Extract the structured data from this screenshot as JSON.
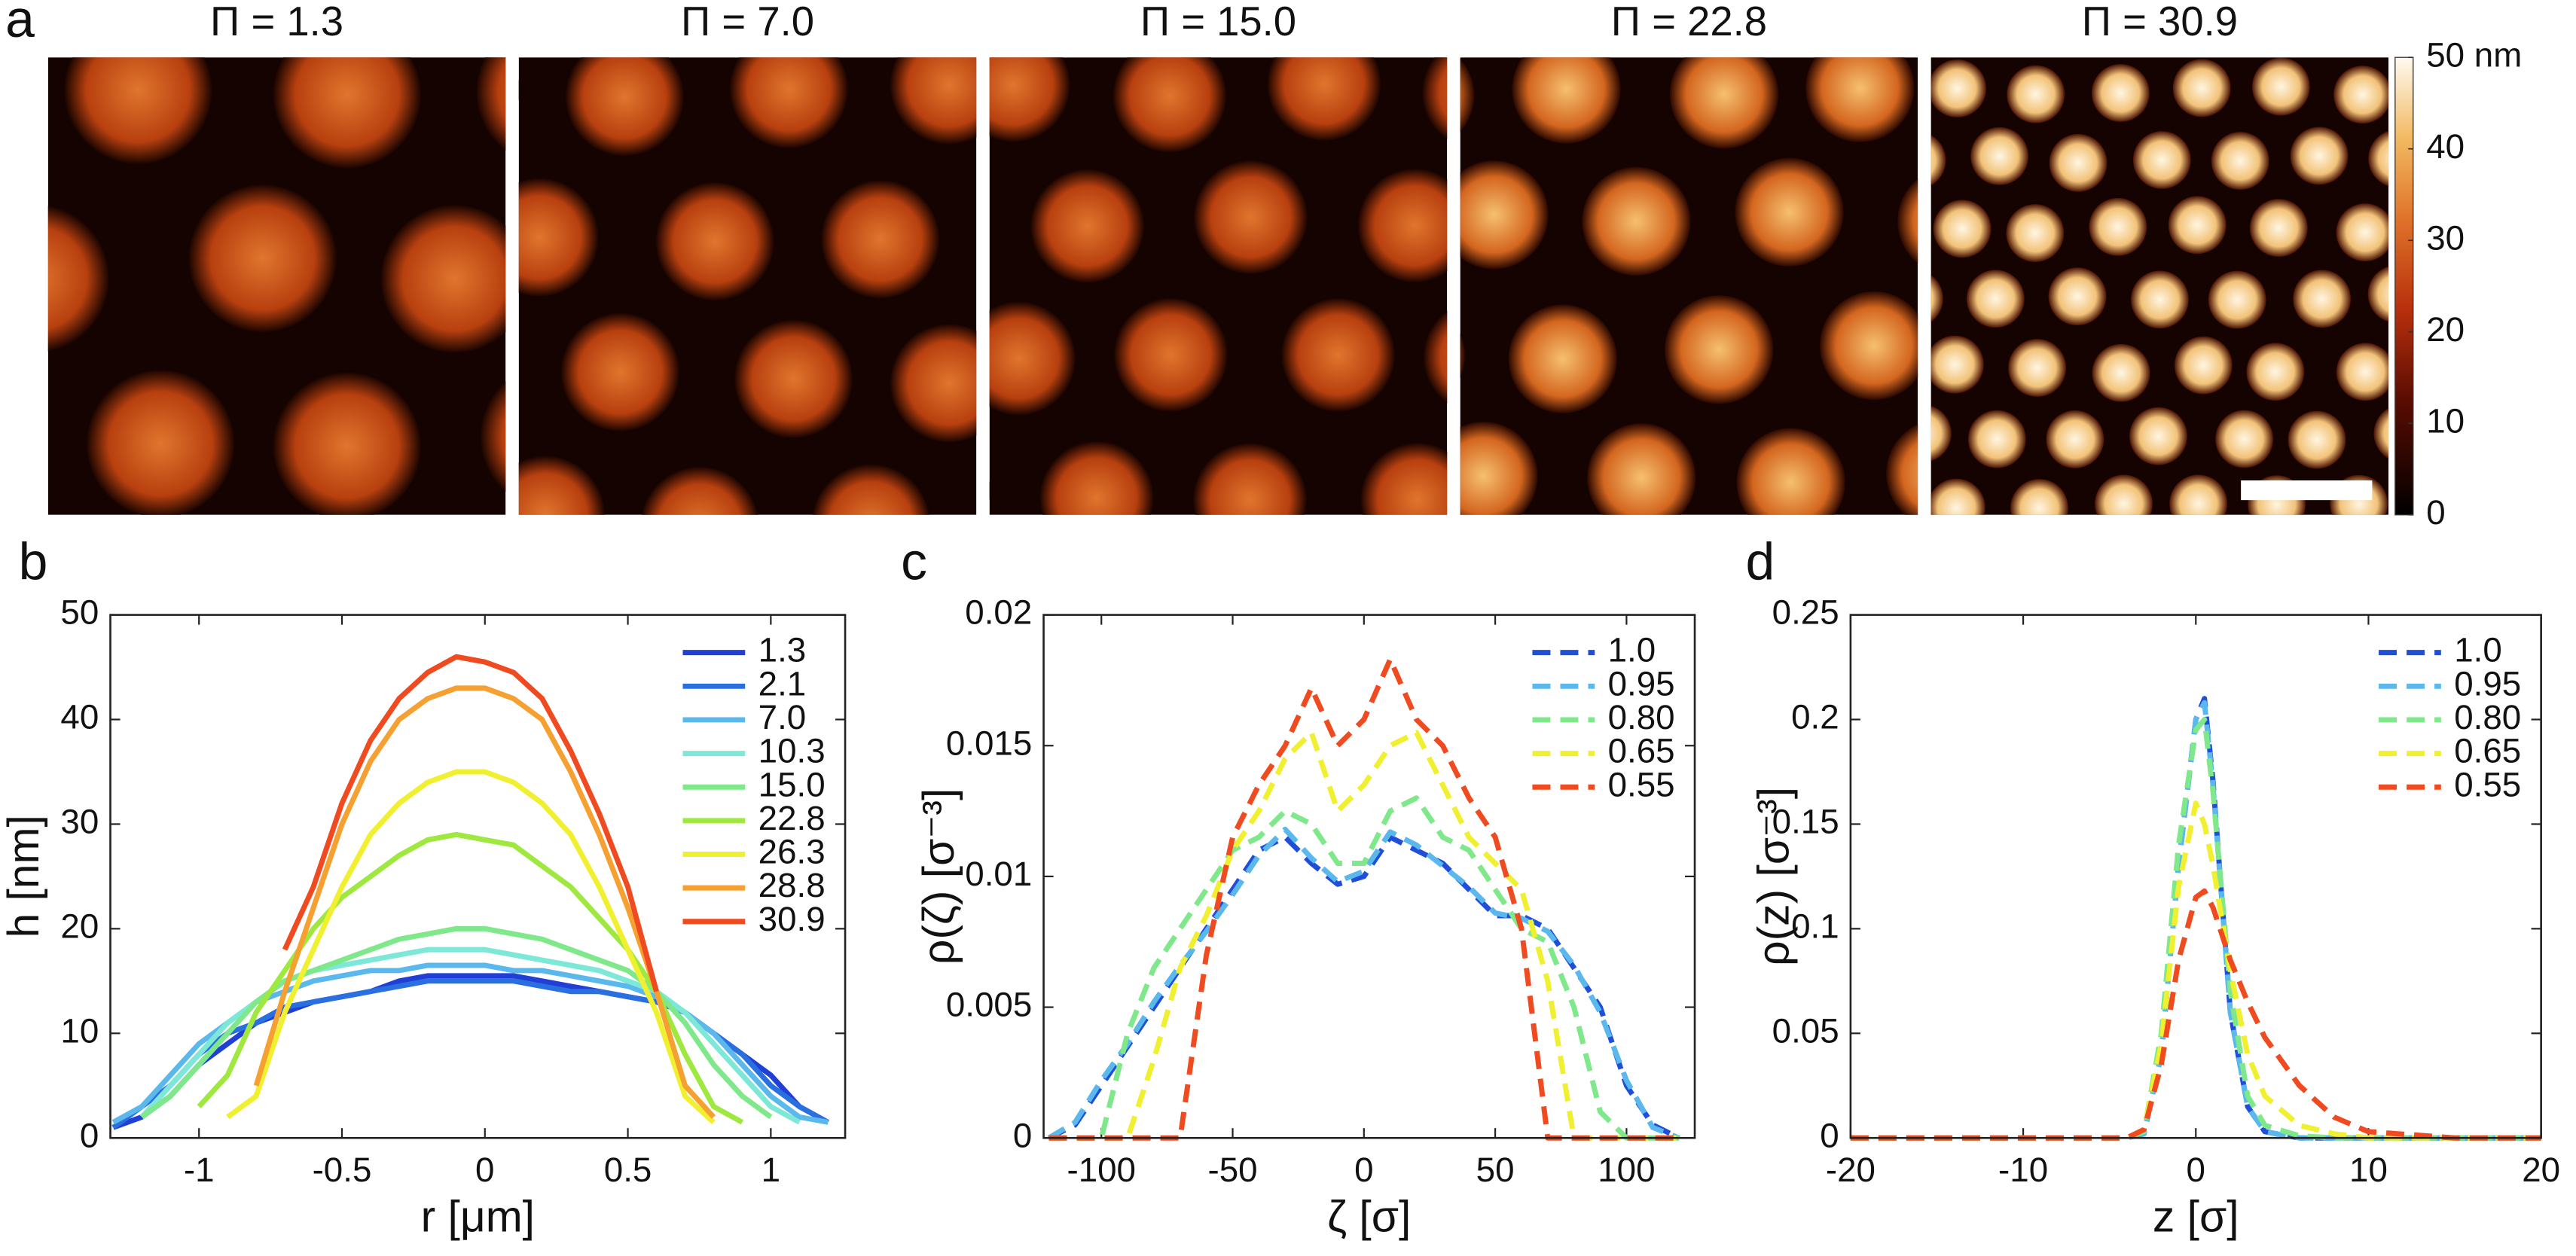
{
  "panel_a": {
    "panel_label": "a",
    "titles": [
      "Π = 1.3",
      "Π = 7.0",
      "Π = 15.0",
      "Π = 22.8",
      "Π = 30.9"
    ],
    "colorbar": {
      "lim": [
        0,
        50
      ],
      "ticks": [
        0,
        10,
        20,
        30,
        40,
        {
          "value": 50,
          "label": "50 nm"
        }
      ]
    }
  },
  "chart_data": [
    {
      "type": "line",
      "panel_label": "b",
      "xlabel": "r [μm]",
      "ylabel": "h [nm]",
      "line_style": "solid",
      "legend": "upper right",
      "x": [
        -1.3,
        -1.2,
        -1.1,
        -1.0,
        -0.9,
        -0.8,
        -0.7,
        -0.6,
        -0.5,
        -0.4,
        -0.3,
        -0.2,
        -0.1,
        0,
        0.1,
        0.2,
        0.3,
        0.4,
        0.5,
        0.6,
        0.7,
        0.8,
        0.9,
        1.0,
        1.1,
        1.2
      ],
      "xlim": [
        -1.31,
        1.26
      ],
      "xticks": [
        -1,
        -0.5,
        0,
        0.5,
        1
      ],
      "ylim": [
        0,
        50
      ],
      "yticks": [
        0,
        10,
        20,
        30,
        40,
        50
      ],
      "series": [
        {
          "name": "1.3",
          "color": "#1f3fd6",
          "values": [
            1,
            2,
            4,
            7,
            9,
            11,
            12,
            13,
            13.5,
            14,
            15,
            15.5,
            15.5,
            15.5,
            15.5,
            15,
            14.5,
            14,
            13.5,
            13,
            12,
            10,
            8,
            6,
            3,
            1.5
          ]
        },
        {
          "name": "2.1",
          "color": "#2a6fe0",
          "values": [
            1,
            3,
            5,
            8,
            10,
            11,
            12.5,
            13,
            13.5,
            14,
            14.5,
            15,
            15,
            15,
            15,
            14.5,
            14,
            14,
            13.5,
            13,
            12,
            10,
            8,
            5,
            3,
            1.5
          ]
        },
        {
          "name": "7.0",
          "color": "#5ab8ec",
          "values": [
            1.5,
            3,
            6,
            9,
            11,
            13,
            14,
            15,
            15.5,
            16,
            16,
            16.5,
            16.5,
            16.5,
            16,
            16,
            15.5,
            15,
            14.5,
            13.5,
            12,
            10,
            7,
            4,
            2,
            1.5
          ]
        },
        {
          "name": "10.3",
          "color": "#7ee8d8",
          "values": [
            null,
            2,
            5,
            8,
            11,
            13,
            15,
            16,
            16.5,
            17,
            17.5,
            18,
            18,
            18,
            17.5,
            17,
            16.5,
            16,
            15,
            14,
            12,
            9,
            6,
            3,
            1.5,
            null
          ]
        },
        {
          "name": "15.0",
          "color": "#7fe88a",
          "values": [
            null,
            2,
            4,
            7,
            10,
            13,
            15,
            16,
            17,
            18,
            19,
            19.5,
            20,
            20,
            19.5,
            19,
            18,
            17,
            16,
            14,
            11,
            7,
            4,
            2,
            null,
            null
          ]
        },
        {
          "name": "22.8",
          "color": "#9fe840",
          "values": [
            null,
            null,
            null,
            3,
            6,
            12,
            16,
            20,
            23,
            25,
            27,
            28.5,
            29,
            28.5,
            28,
            26,
            24,
            21,
            18,
            14,
            8,
            3,
            1.5,
            null,
            null,
            null
          ]
        },
        {
          "name": "26.3",
          "color": "#f0f030",
          "values": [
            null,
            null,
            null,
            null,
            2,
            4,
            12,
            18,
            24,
            29,
            32,
            34,
            35,
            35,
            34,
            32,
            29,
            24,
            18,
            12,
            4,
            1.5,
            null,
            null,
            null,
            null
          ]
        },
        {
          "name": "28.8",
          "color": "#f5a030",
          "values": [
            null,
            null,
            null,
            null,
            null,
            5,
            14,
            22,
            30,
            36,
            40,
            42,
            43,
            43,
            42,
            40,
            35,
            29,
            22,
            14,
            5,
            2,
            null,
            null,
            null,
            null
          ]
        },
        {
          "name": "30.9",
          "color": "#f04a20",
          "values": [
            null,
            null,
            null,
            null,
            null,
            null,
            18,
            24,
            32,
            38,
            42,
            44.5,
            46,
            45.5,
            44.5,
            42,
            37,
            31,
            24,
            14,
            null,
            null,
            null,
            null,
            null,
            null
          ]
        }
      ]
    },
    {
      "type": "line",
      "panel_label": "c",
      "xlabel": "ζ [σ]",
      "ylabel": "ρ(ζ) [σ⁻³]",
      "line_style": "dashed",
      "legend": "upper right",
      "x": [
        -120,
        -110,
        -100,
        -90,
        -80,
        -70,
        -60,
        -50,
        -40,
        -30,
        -20,
        -10,
        0,
        10,
        20,
        30,
        40,
        50,
        60,
        70,
        80,
        90,
        100,
        110,
        120
      ],
      "xlim": [
        -122,
        126
      ],
      "xticks": [
        -100,
        -50,
        0,
        50,
        100
      ],
      "ylim": [
        0,
        0.02
      ],
      "yticks": [
        0,
        0.005,
        0.01,
        0.015,
        0.02
      ],
      "series": [
        {
          "name": "1.0",
          "color": "#1f4fd8",
          "values": [
            0,
            0.0005,
            0.002,
            0.0035,
            0.005,
            0.0065,
            0.008,
            0.0095,
            0.011,
            0.0115,
            0.0105,
            0.0097,
            0.01,
            0.0115,
            0.011,
            0.0105,
            0.0095,
            0.0085,
            0.0085,
            0.008,
            0.0065,
            0.005,
            0.002,
            0.0005,
            0
          ]
        },
        {
          "name": "0.95",
          "color": "#5ab8ec",
          "values": [
            0,
            0.0006,
            0.0022,
            0.0036,
            0.0052,
            0.0066,
            0.0079,
            0.0093,
            0.0108,
            0.0118,
            0.0107,
            0.0098,
            0.0102,
            0.0117,
            0.0112,
            0.0104,
            0.0096,
            0.0086,
            0.0084,
            0.0079,
            0.0066,
            0.0048,
            0.0022,
            0.0004,
            0
          ]
        },
        {
          "name": "0.80",
          "color": "#7fe88a",
          "values": [
            0,
            0,
            0,
            0.004,
            0.0065,
            0.008,
            0.0095,
            0.011,
            0.0115,
            0.0125,
            0.012,
            0.0105,
            0.0105,
            0.0125,
            0.013,
            0.0115,
            0.011,
            0.0095,
            0.008,
            0.0075,
            0.005,
            0.001,
            0,
            0,
            0
          ]
        },
        {
          "name": "0.65",
          "color": "#f0f030",
          "values": [
            0,
            0,
            0,
            0,
            0.003,
            0.0065,
            0.0085,
            0.011,
            0.0125,
            0.0145,
            0.0155,
            0.0125,
            0.0135,
            0.015,
            0.0155,
            0.0135,
            0.0115,
            0.0105,
            0.0095,
            0.006,
            0,
            0,
            0,
            0,
            0
          ]
        },
        {
          "name": "0.55",
          "color": "#f04a20",
          "values": [
            0,
            0,
            0,
            0,
            0,
            0,
            0.007,
            0.0115,
            0.0135,
            0.015,
            0.0172,
            0.015,
            0.016,
            0.0183,
            0.016,
            0.015,
            0.013,
            0.0115,
            0.008,
            0,
            0,
            0,
            0,
            0,
            0
          ]
        }
      ]
    },
    {
      "type": "line",
      "panel_label": "d",
      "xlabel": "z [σ]",
      "ylabel": "ρ(z) [σ⁻³]",
      "line_style": "dashed",
      "legend": "upper right",
      "x": [
        -20,
        -10,
        -4,
        -3,
        -2,
        -1,
        0,
        0.5,
        1,
        2,
        3,
        4,
        6,
        8,
        10,
        15,
        20
      ],
      "xlim": [
        -20,
        20
      ],
      "xticks": [
        -20,
        -10,
        0,
        10,
        20
      ],
      "ylim": [
        0,
        0.25
      ],
      "yticks": [
        0,
        0.05,
        0.1,
        0.15,
        0.2,
        0.25
      ],
      "series": [
        {
          "name": "1.0",
          "color": "#1f4fd8",
          "values": [
            0,
            0,
            0,
            0.002,
            0.04,
            0.13,
            0.2,
            0.21,
            0.17,
            0.06,
            0.015,
            0.003,
            0,
            0,
            0,
            0,
            0
          ]
        },
        {
          "name": "0.95",
          "color": "#5ab8ec",
          "values": [
            0,
            0,
            0,
            0.002,
            0.04,
            0.13,
            0.2,
            0.208,
            0.168,
            0.06,
            0.015,
            0.003,
            0,
            0,
            0,
            0,
            0
          ]
        },
        {
          "name": "0.80",
          "color": "#7fe88a",
          "values": [
            0,
            0,
            0,
            0.003,
            0.05,
            0.14,
            0.195,
            0.2,
            0.165,
            0.07,
            0.02,
            0.006,
            0.001,
            0,
            0,
            0,
            0
          ]
        },
        {
          "name": "0.65",
          "color": "#f0f030",
          "values": [
            0,
            0,
            0,
            0.004,
            0.045,
            0.12,
            0.16,
            0.15,
            0.13,
            0.08,
            0.04,
            0.02,
            0.006,
            0.002,
            0,
            0,
            0
          ]
        },
        {
          "name": "0.55",
          "color": "#f04a20",
          "values": [
            0,
            0,
            0,
            0.004,
            0.035,
            0.085,
            0.115,
            0.118,
            0.11,
            0.085,
            0.065,
            0.048,
            0.025,
            0.01,
            0.003,
            0,
            0
          ]
        }
      ]
    }
  ]
}
